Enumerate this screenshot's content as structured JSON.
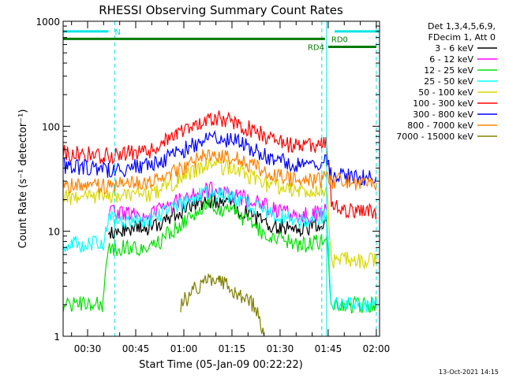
{
  "chart_data": {
    "type": "line",
    "title": "RHESSI Observing Summary Count Rates",
    "xlabel": "Start Time (05-Jan-09 00:22:22)",
    "ylabel": "Count Rate (s⁻¹ detector⁻¹)",
    "yscale": "log",
    "ylim": [
      1,
      1000
    ],
    "xlim_minutes": [
      22.37,
      121
    ],
    "x_ticks": [
      "00:30",
      "00:45",
      "01:00",
      "01:15",
      "01:30",
      "01:45",
      "02:00"
    ],
    "y_ticks": [
      "1",
      "10",
      "100",
      "1000"
    ],
    "legend_header": [
      "Det 1,3,4,5,6,9,",
      "FDecim 1, Att 0"
    ],
    "legend_position": "right",
    "footer_date": "13-Oct-2021 14:15",
    "flags": [
      {
        "label": "N",
        "color": "#00e5e5",
        "y": 800,
        "segments": [
          [
            22.4,
            36.5
          ],
          [
            107,
            121
          ]
        ]
      },
      {
        "label": "RD0",
        "color": "#007a00",
        "y": 680,
        "segments": [
          [
            22.4,
            104
          ]
        ]
      },
      {
        "label": "RD4",
        "color": "#007a00",
        "y": 570,
        "segments": [
          [
            105,
            120
          ]
        ]
      }
    ],
    "dashed_verticals_minutes": [
      38.5,
      103,
      120
    ],
    "solid_verticals_minutes": [
      104.5
    ],
    "series": [
      {
        "name": "3 - 6 keV",
        "color": "#000000",
        "points": [
          [
            36.5,
            10
          ],
          [
            50,
            11
          ],
          [
            58,
            15
          ],
          [
            68,
            20
          ],
          [
            76,
            17
          ],
          [
            86,
            12
          ],
          [
            96,
            10
          ],
          [
            103,
            12
          ],
          [
            104.5,
            13
          ]
        ]
      },
      {
        "name": "6 - 12 keV",
        "color": "#ff00ff",
        "points": [
          [
            36.5,
            15
          ],
          [
            50,
            15
          ],
          [
            58,
            19
          ],
          [
            68,
            25
          ],
          [
            76,
            22
          ],
          [
            86,
            17
          ],
          [
            96,
            14
          ],
          [
            103,
            15
          ],
          [
            104.5,
            16
          ]
        ]
      },
      {
        "name": "12 - 25 keV",
        "color": "#00e000",
        "points": [
          [
            22.4,
            2
          ],
          [
            34.8,
            2
          ],
          [
            36.5,
            7
          ],
          [
            50,
            7
          ],
          [
            58,
            11
          ],
          [
            68,
            18
          ],
          [
            76,
            15
          ],
          [
            86,
            9
          ],
          [
            96,
            7.3
          ],
          [
            103,
            8
          ],
          [
            104.5,
            8
          ],
          [
            106,
            2
          ],
          [
            120,
            2
          ]
        ]
      },
      {
        "name": "25 - 50 keV",
        "color": "#00ffff",
        "points": [
          [
            22.4,
            7.5
          ],
          [
            35,
            7.5
          ],
          [
            36.5,
            13
          ],
          [
            50,
            13
          ],
          [
            58,
            17
          ],
          [
            68,
            24
          ],
          [
            76,
            21
          ],
          [
            86,
            15
          ],
          [
            96,
            12.5
          ],
          [
            103,
            14
          ],
          [
            104.5,
            14
          ],
          [
            106,
            2
          ],
          [
            120,
            2
          ]
        ]
      },
      {
        "name": "50 - 100 keV",
        "color": "#d8d800",
        "points": [
          [
            22.4,
            21
          ],
          [
            36.5,
            22
          ],
          [
            50,
            23
          ],
          [
            58,
            30
          ],
          [
            68,
            44
          ],
          [
            76,
            39
          ],
          [
            86,
            28
          ],
          [
            96,
            24
          ],
          [
            103,
            25
          ],
          [
            104.5,
            25
          ],
          [
            106,
            5.3
          ],
          [
            120,
            5.3
          ]
        ]
      },
      {
        "name": "100 - 300 keV",
        "color": "#ff0000",
        "points": [
          [
            22.4,
            56
          ],
          [
            36.5,
            52
          ],
          [
            50,
            60
          ],
          [
            58,
            82
          ],
          [
            68,
            122
          ],
          [
            76,
            110
          ],
          [
            86,
            78
          ],
          [
            96,
            62
          ],
          [
            103,
            68
          ],
          [
            104.5,
            70
          ],
          [
            106,
            17
          ],
          [
            120,
            15
          ]
        ]
      },
      {
        "name": "300 - 800 keV",
        "color": "#0000ff",
        "points": [
          [
            22.4,
            42
          ],
          [
            36.5,
            38
          ],
          [
            50,
            43
          ],
          [
            58,
            55
          ],
          [
            68,
            80
          ],
          [
            76,
            72
          ],
          [
            86,
            52
          ],
          [
            96,
            42
          ],
          [
            103,
            46
          ],
          [
            104.5,
            47
          ],
          [
            106,
            34
          ],
          [
            120,
            32
          ]
        ]
      },
      {
        "name": "800 - 7000 keV",
        "color": "#ff8000",
        "points": [
          [
            22.4,
            27
          ],
          [
            36.5,
            27
          ],
          [
            50,
            30
          ],
          [
            58,
            38
          ],
          [
            68,
            56
          ],
          [
            76,
            50
          ],
          [
            86,
            36
          ],
          [
            96,
            29
          ],
          [
            103,
            31
          ],
          [
            104.5,
            33
          ],
          [
            106,
            30
          ],
          [
            120,
            29
          ]
        ]
      },
      {
        "name": "7000 - 15000 keV",
        "color": "#808000",
        "points": [
          [
            59,
            2
          ],
          [
            66,
            3.4
          ],
          [
            71,
            3.5
          ],
          [
            76,
            2.5
          ],
          [
            82,
            2
          ],
          [
            85,
            1
          ]
        ]
      }
    ]
  }
}
